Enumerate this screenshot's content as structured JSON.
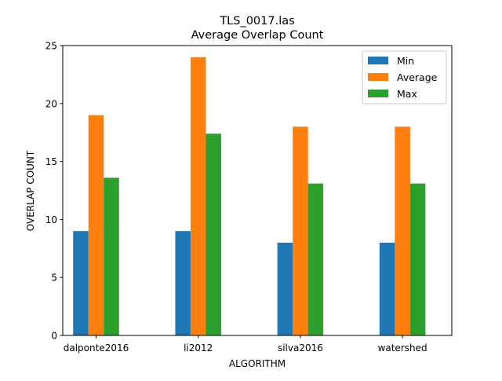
{
  "chart_data": {
    "type": "bar",
    "title": "TLS_0017.las",
    "subtitle": "Average Overlap Count",
    "xlabel": "ALGORITHM",
    "ylabel": "OVERLAP COUNT",
    "categories": [
      "dalponte2016",
      "li2012",
      "silva2016",
      "watershed"
    ],
    "series": [
      {
        "name": "Min",
        "color": "#1f77b4",
        "values": [
          9,
          9,
          8,
          8
        ]
      },
      {
        "name": "Average",
        "color": "#ff7f0e",
        "values": [
          19,
          24,
          18,
          18
        ]
      },
      {
        "name": "Max",
        "color": "#2ca02c",
        "values": [
          13.6,
          17.4,
          13.1,
          13.1
        ]
      }
    ],
    "ylim": [
      0,
      25
    ],
    "yticks": [
      0,
      5,
      10,
      15,
      20,
      25
    ],
    "grid": false,
    "legend_position": "top-right"
  }
}
